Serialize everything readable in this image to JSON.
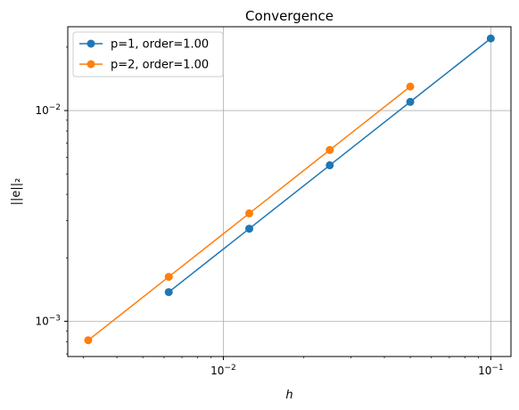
{
  "chart_data": {
    "type": "line",
    "title": "Convergence",
    "xlabel": "h",
    "ylabel": "||e||₂",
    "xscale": "log",
    "yscale": "log",
    "xlim": [
      0.00262,
      0.119
    ],
    "ylim": [
      0.00068,
      0.025
    ],
    "grid": true,
    "legend_position": "top-left",
    "x_ticks": [
      {
        "value": 0.01,
        "base": "10",
        "exp": "−2"
      },
      {
        "value": 0.1,
        "base": "10",
        "exp": "−1"
      }
    ],
    "y_ticks": [
      {
        "value": 0.001,
        "base": "10",
        "exp": "−3"
      },
      {
        "value": 0.01,
        "base": "10",
        "exp": "−2"
      }
    ],
    "series": [
      {
        "name": "p=1, order=1.00",
        "color": "#1f77b4",
        "x": [
          0.1,
          0.05,
          0.025,
          0.0125,
          0.00625
        ],
        "y": [
          0.022,
          0.011,
          0.0055,
          0.00275,
          0.001375
        ]
      },
      {
        "name": "p=2, order=1.00",
        "color": "#ff7f0e",
        "x": [
          0.05,
          0.025,
          0.0125,
          0.00625,
          0.003125
        ],
        "y": [
          0.013,
          0.0065,
          0.00325,
          0.001625,
          0.0008125
        ]
      }
    ]
  }
}
